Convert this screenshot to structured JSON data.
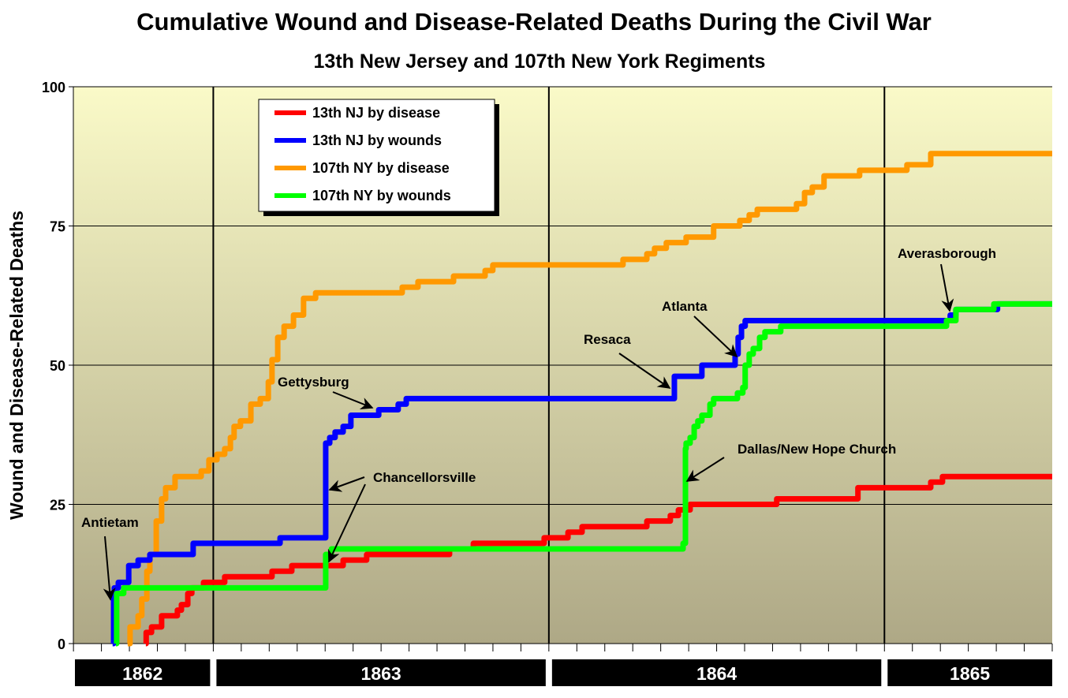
{
  "chart_data": {
    "type": "line",
    "step": true,
    "title": "Cumulative Wound and Disease-Related Deaths During the Civil War",
    "subtitle": "13th New Jersey and 107th New York Regiments",
    "xlabel": "",
    "ylabel": "Wound and Disease-Related Deaths",
    "xlim": [
      1862.583,
      1865.5
    ],
    "ylim": [
      0,
      100
    ],
    "yticks": [
      0,
      25,
      50,
      75,
      100
    ],
    "year_labels": [
      "1862",
      "1863",
      "1864",
      "1865"
    ],
    "grid": true,
    "legend_position": "top-left",
    "background": [
      "#fafac8",
      "#aea886"
    ],
    "series": [
      {
        "name": "13th NJ by disease",
        "color": "#ff0000",
        "points": [
          [
            1862.799,
            0
          ],
          [
            1862.8,
            2
          ],
          [
            1862.816,
            3
          ],
          [
            1862.846,
            5
          ],
          [
            1862.893,
            6
          ],
          [
            1862.905,
            7
          ],
          [
            1862.924,
            9
          ],
          [
            1862.936,
            10
          ],
          [
            1862.971,
            11
          ],
          [
            1863.034,
            12
          ],
          [
            1863.175,
            13
          ],
          [
            1863.234,
            14
          ],
          [
            1863.387,
            15
          ],
          [
            1863.457,
            16
          ],
          [
            1863.704,
            17
          ],
          [
            1863.775,
            18
          ],
          [
            1863.986,
            19
          ],
          [
            1864.057,
            20
          ],
          [
            1864.099,
            21
          ],
          [
            1864.292,
            22
          ],
          [
            1864.362,
            23
          ],
          [
            1864.386,
            24
          ],
          [
            1864.421,
            25
          ],
          [
            1864.679,
            26
          ],
          [
            1864.921,
            28
          ],
          [
            1865.138,
            29
          ],
          [
            1865.173,
            30
          ],
          [
            1865.5,
            30
          ]
        ]
      },
      {
        "name": "13th NJ by wounds",
        "color": "#0000ff",
        "points": [
          [
            1862.7,
            0
          ],
          [
            1862.703,
            8
          ],
          [
            1862.705,
            10
          ],
          [
            1862.717,
            11
          ],
          [
            1862.748,
            14
          ],
          [
            1862.776,
            15
          ],
          [
            1862.811,
            16
          ],
          [
            1862.94,
            18
          ],
          [
            1863.199,
            19
          ],
          [
            1863.335,
            36
          ],
          [
            1863.347,
            37
          ],
          [
            1863.363,
            38
          ],
          [
            1863.387,
            39
          ],
          [
            1863.41,
            41
          ],
          [
            1863.493,
            42
          ],
          [
            1863.551,
            43
          ],
          [
            1863.575,
            44
          ],
          [
            1864.374,
            48
          ],
          [
            1864.456,
            50
          ],
          [
            1864.555,
            52
          ],
          [
            1864.564,
            55
          ],
          [
            1864.574,
            57
          ],
          [
            1864.585,
            58
          ],
          [
            1865.196,
            59
          ],
          [
            1865.213,
            60
          ],
          [
            1865.337,
            61
          ],
          [
            1865.5,
            61
          ]
        ]
      },
      {
        "name": "107th NY by disease",
        "color": "#ff9900",
        "points": [
          [
            1862.745,
            0
          ],
          [
            1862.752,
            3
          ],
          [
            1862.776,
            5
          ],
          [
            1862.787,
            8
          ],
          [
            1862.802,
            13
          ],
          [
            1862.811,
            16
          ],
          [
            1862.83,
            22
          ],
          [
            1862.846,
            26
          ],
          [
            1862.858,
            28
          ],
          [
            1862.886,
            30
          ],
          [
            1862.964,
            31
          ],
          [
            1862.987,
            33
          ],
          [
            1863.011,
            34
          ],
          [
            1863.034,
            35
          ],
          [
            1863.051,
            37
          ],
          [
            1863.062,
            39
          ],
          [
            1863.081,
            40
          ],
          [
            1863.112,
            43
          ],
          [
            1863.14,
            44
          ],
          [
            1863.164,
            47
          ],
          [
            1863.175,
            51
          ],
          [
            1863.192,
            55
          ],
          [
            1863.211,
            57
          ],
          [
            1863.239,
            59
          ],
          [
            1863.269,
            62
          ],
          [
            1863.305,
            63
          ],
          [
            1863.563,
            64
          ],
          [
            1863.61,
            65
          ],
          [
            1863.716,
            66
          ],
          [
            1863.81,
            67
          ],
          [
            1863.833,
            68
          ],
          [
            1864.221,
            69
          ],
          [
            1864.292,
            70
          ],
          [
            1864.315,
            71
          ],
          [
            1864.35,
            72
          ],
          [
            1864.409,
            73
          ],
          [
            1864.491,
            75
          ],
          [
            1864.569,
            76
          ],
          [
            1864.597,
            77
          ],
          [
            1864.621,
            78
          ],
          [
            1864.738,
            79
          ],
          [
            1864.762,
            81
          ],
          [
            1864.785,
            82
          ],
          [
            1864.82,
            84
          ],
          [
            1864.926,
            85
          ],
          [
            1865.067,
            86
          ],
          [
            1865.138,
            88
          ],
          [
            1865.5,
            88
          ]
        ]
      },
      {
        "name": "107th NY by wounds",
        "color": "#00ff00",
        "points": [
          [
            1862.71,
            0
          ],
          [
            1862.712,
            9
          ],
          [
            1862.733,
            10
          ],
          [
            1863.335,
            16
          ],
          [
            1863.352,
            17
          ],
          [
            1864.4,
            18
          ],
          [
            1864.407,
            35
          ],
          [
            1864.409,
            36
          ],
          [
            1864.421,
            37
          ],
          [
            1864.433,
            39
          ],
          [
            1864.444,
            40
          ],
          [
            1864.456,
            41
          ],
          [
            1864.48,
            43
          ],
          [
            1864.491,
            44
          ],
          [
            1864.562,
            45
          ],
          [
            1864.578,
            46
          ],
          [
            1864.585,
            50
          ],
          [
            1864.597,
            52
          ],
          [
            1864.609,
            53
          ],
          [
            1864.628,
            55
          ],
          [
            1864.644,
            56
          ],
          [
            1864.691,
            57
          ],
          [
            1865.185,
            58
          ],
          [
            1865.213,
            60
          ],
          [
            1865.326,
            61
          ],
          [
            1865.5,
            61
          ]
        ]
      }
    ],
    "annotations": [
      {
        "text": "Antietam"
      },
      {
        "text": "Gettysburg"
      },
      {
        "text": "Chancellorsville"
      },
      {
        "text": "Resaca"
      },
      {
        "text": "Atlanta"
      },
      {
        "text": "Dallas/New Hope Church"
      },
      {
        "text": "Averasborough"
      }
    ]
  }
}
